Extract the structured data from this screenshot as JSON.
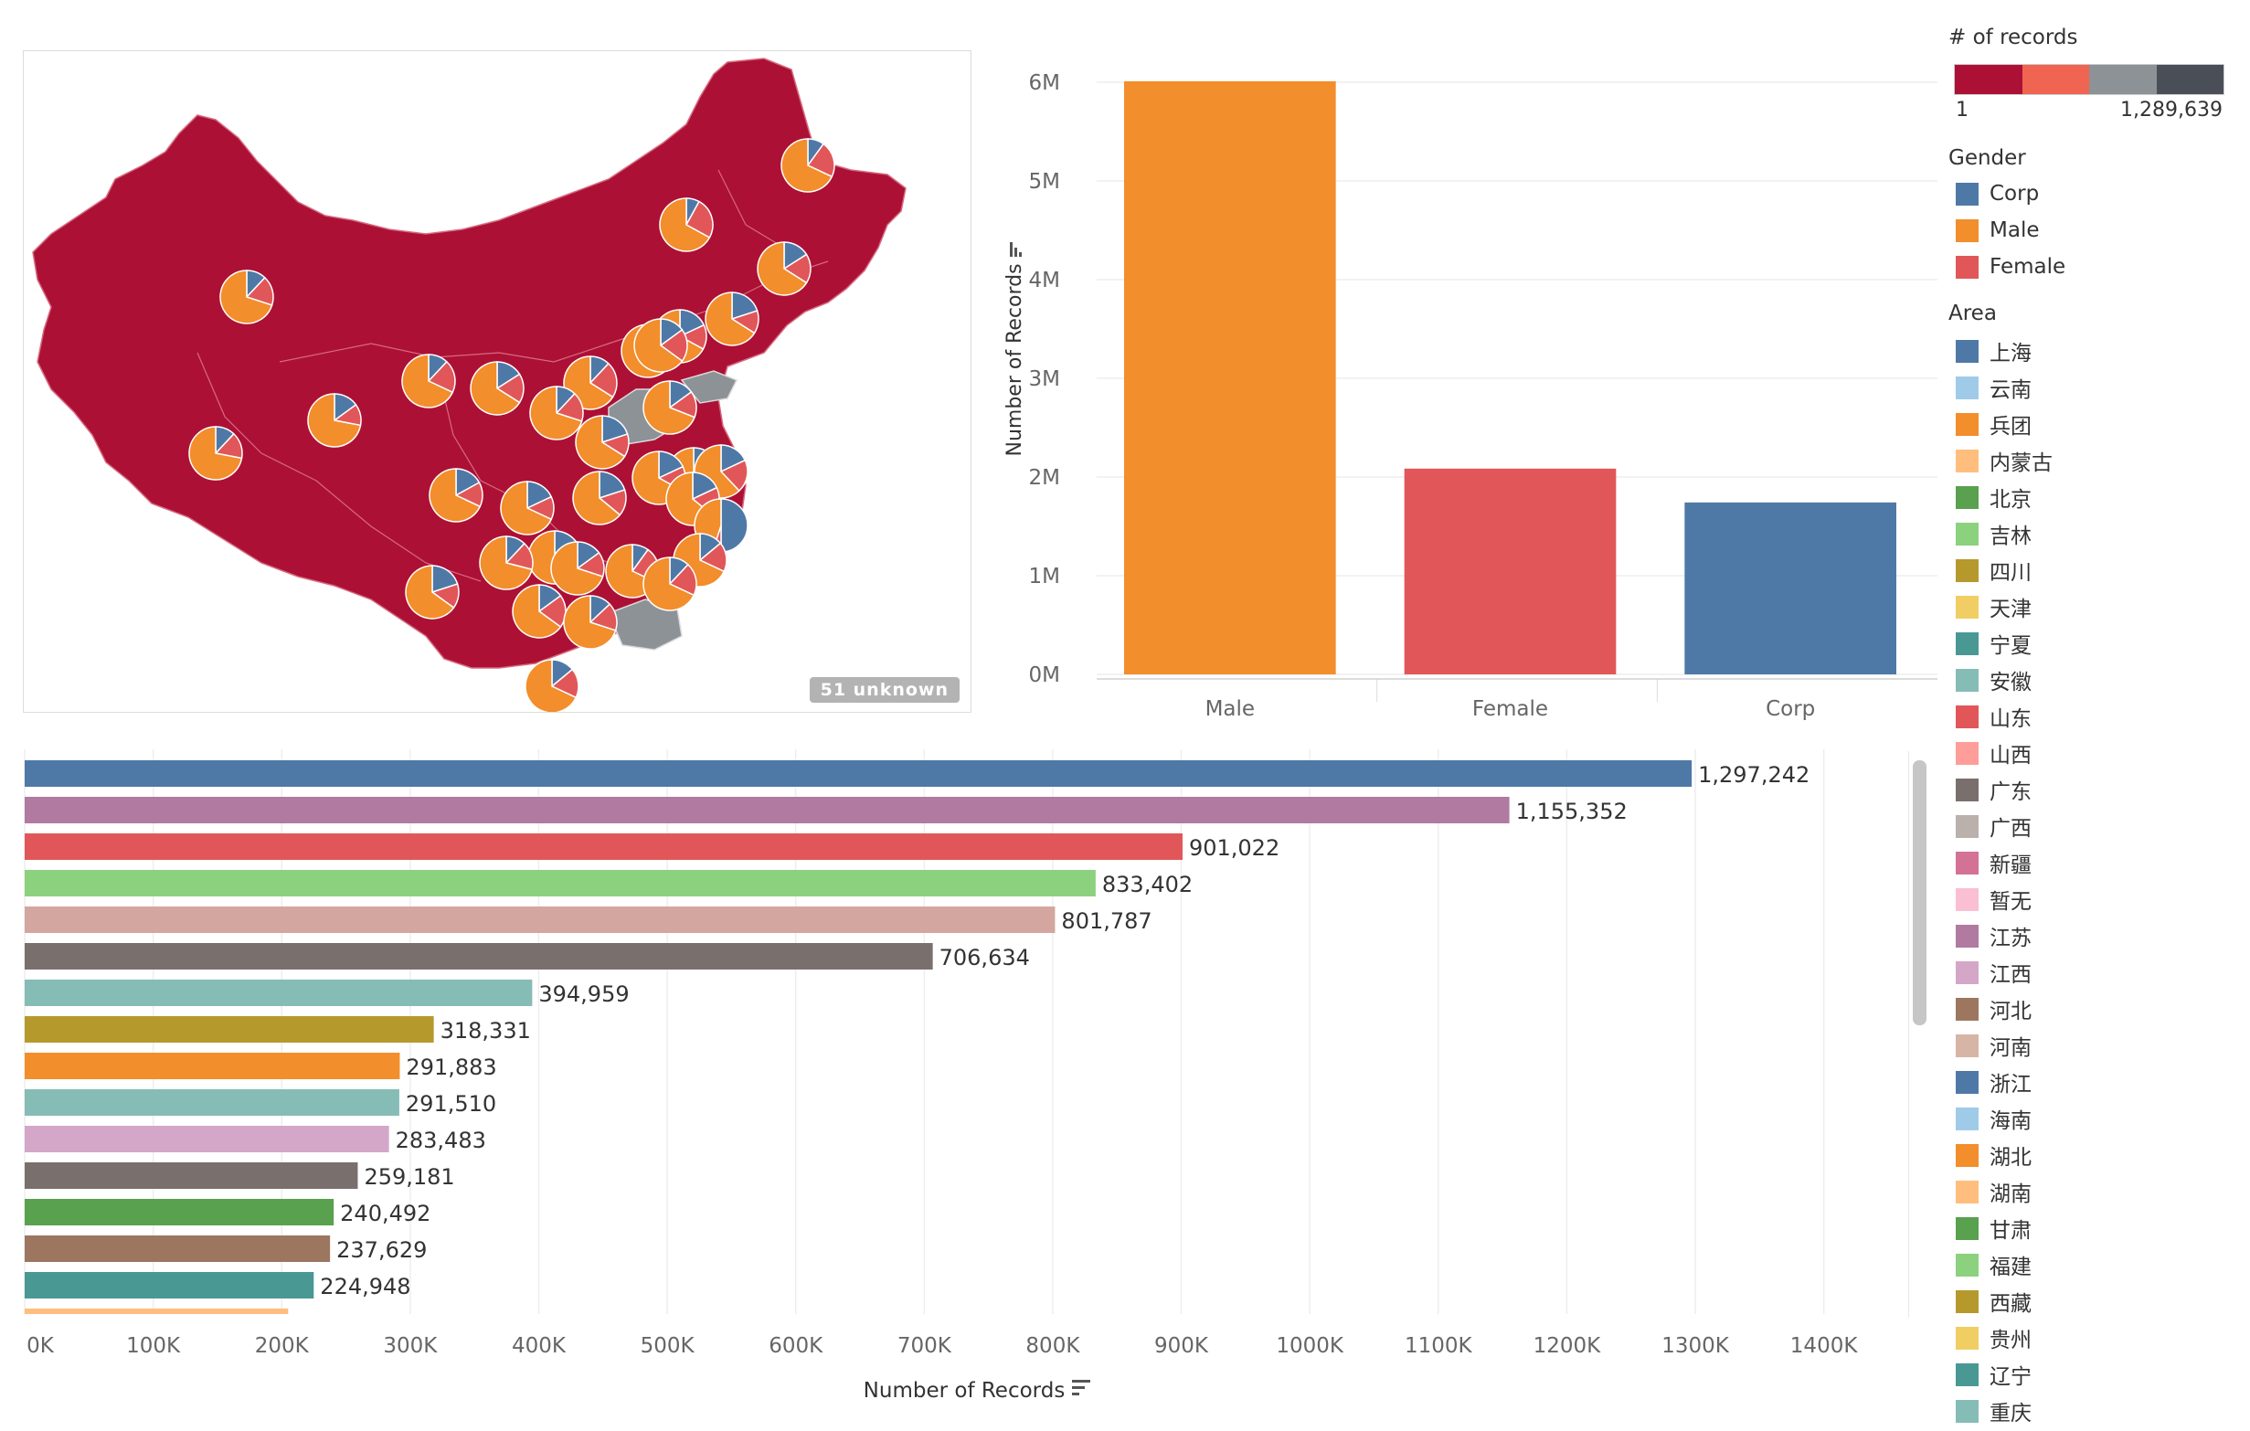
{
  "map": {
    "unknown_label": "51 unknown",
    "region_color": "#ad1035",
    "other_color": "#8d9296",
    "pie_colors": {
      "Corp": "#4e79a7",
      "Male": "#f28e2b",
      "Female": "#e15759"
    }
  },
  "chart_data": [
    {
      "type": "bar",
      "title": "",
      "xlabel": "",
      "ylabel": "Number of Records",
      "categories": [
        "Male",
        "Female",
        "Corp"
      ],
      "values": [
        6010000,
        2085000,
        1742000
      ],
      "colors": [
        "#f28e2b",
        "#e15759",
        "#4e79a7"
      ],
      "ylim": [
        0,
        6000000
      ],
      "yticks": [
        "0M",
        "1M",
        "2M",
        "3M",
        "4M",
        "5M",
        "6M"
      ],
      "grid": true
    },
    {
      "type": "bar",
      "orientation": "horizontal",
      "title": "",
      "xlabel": "Number of Records",
      "values": [
        1297242,
        1155352,
        901022,
        833402,
        801787,
        706634,
        394959,
        318331,
        291883,
        291510,
        283483,
        259181,
        240492,
        237629,
        224948,
        205000
      ],
      "labels": [
        "1,297,242",
        "1,155,352",
        "901,022",
        "833,402",
        "801,787",
        "706,634",
        "394,959",
        "318,331",
        "291,883",
        "291,510",
        "283,483",
        "259,181",
        "240,492",
        "237,629",
        "224,948",
        ""
      ],
      "colors": [
        "#4e79a7",
        "#b07aa1",
        "#e15759",
        "#8cd17d",
        "#d4a6a0",
        "#79706e",
        "#86bcb6",
        "#b6992d",
        "#f28e2b",
        "#86bcb6",
        "#d4a6c8",
        "#79706e",
        "#59a14f",
        "#9d7660",
        "#499894",
        "#ffbe7d"
      ],
      "xlim": [
        0,
        1400000
      ],
      "xticks": [
        "0K",
        "100K",
        "200K",
        "300K",
        "400K",
        "500K",
        "600K",
        "700K",
        "800K",
        "900K",
        "1000K",
        "1100K",
        "1200K",
        "1300K",
        "1400K"
      ],
      "grid": true
    }
  ],
  "legend": {
    "records_title": "# of records",
    "records_min": "1",
    "records_max": "1,289,639",
    "records_colors": [
      "#ad1035",
      "#ef6551",
      "#8d9296",
      "#4a4f57"
    ],
    "gender_title": "Gender",
    "gender_items": [
      {
        "label": "Corp",
        "color": "#4e79a7"
      },
      {
        "label": "Male",
        "color": "#f28e2b"
      },
      {
        "label": "Female",
        "color": "#e15759"
      }
    ],
    "area_title": "Area",
    "area_items": [
      {
        "label": "上海",
        "color": "#4e79a7"
      },
      {
        "label": "云南",
        "color": "#a0cbe8"
      },
      {
        "label": "兵团",
        "color": "#f28e2b"
      },
      {
        "label": "内蒙古",
        "color": "#ffbe7d"
      },
      {
        "label": "北京",
        "color": "#59a14f"
      },
      {
        "label": "吉林",
        "color": "#8cd17d"
      },
      {
        "label": "四川",
        "color": "#b6992d"
      },
      {
        "label": "天津",
        "color": "#f1ce63"
      },
      {
        "label": "宁夏",
        "color": "#499894"
      },
      {
        "label": "安徽",
        "color": "#86bcb6"
      },
      {
        "label": "山东",
        "color": "#e15759"
      },
      {
        "label": "山西",
        "color": "#ff9d9a"
      },
      {
        "label": "广东",
        "color": "#79706e"
      },
      {
        "label": "广西",
        "color": "#bab0ac"
      },
      {
        "label": "新疆",
        "color": "#d37295"
      },
      {
        "label": "暂无",
        "color": "#fabfd2"
      },
      {
        "label": "江苏",
        "color": "#b07aa1"
      },
      {
        "label": "江西",
        "color": "#d4a6c8"
      },
      {
        "label": "河北",
        "color": "#9d7660"
      },
      {
        "label": "河南",
        "color": "#d7b5a6"
      },
      {
        "label": "浙江",
        "color": "#4e79a7"
      },
      {
        "label": "海南",
        "color": "#a0cbe8"
      },
      {
        "label": "湖北",
        "color": "#f28e2b"
      },
      {
        "label": "湖南",
        "color": "#ffbe7d"
      },
      {
        "label": "甘肃",
        "color": "#59a14f"
      },
      {
        "label": "福建",
        "color": "#8cd17d"
      },
      {
        "label": "西藏",
        "color": "#b6992d"
      },
      {
        "label": "贵州",
        "color": "#f1ce63"
      },
      {
        "label": "辽宁",
        "color": "#499894"
      },
      {
        "label": "重庆",
        "color": "#86bcb6"
      }
    ]
  }
}
